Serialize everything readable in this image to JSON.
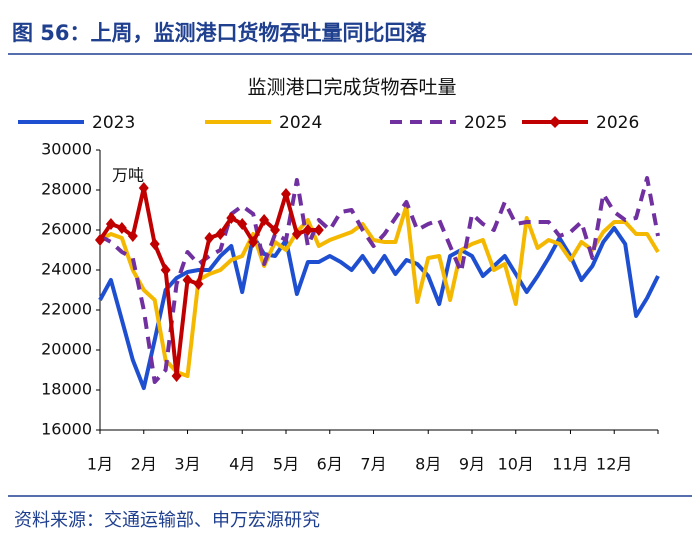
{
  "header": {
    "title": "图 56：上周，监测港口货物吞吐量同比回落"
  },
  "chart_data": {
    "type": "line",
    "title": "监测港口完成货物吞吐量",
    "unit_label": "万吨",
    "categories": [
      "1月",
      null,
      null,
      null,
      "2月",
      null,
      null,
      null,
      "3月",
      null,
      null,
      null,
      null,
      "4月",
      null,
      null,
      null,
      "5月",
      null,
      null,
      null,
      "6月",
      null,
      null,
      null,
      "7月",
      null,
      null,
      null,
      null,
      "8月",
      null,
      null,
      null,
      "9月",
      null,
      null,
      null,
      "10月",
      null,
      null,
      null,
      null,
      "11月",
      null,
      null,
      null,
      "12月",
      null,
      null,
      null,
      null
    ],
    "series": [
      {
        "name": "2023",
        "color": "#1f4fd1",
        "style": "solid",
        "values": [
          22500,
          23500,
          21500,
          19500,
          18100,
          20500,
          23000,
          23600,
          23900,
          24000,
          24000,
          24700,
          25200,
          22900,
          25700,
          24800,
          24700,
          25500,
          22800,
          24400,
          24400,
          24700,
          24400,
          24000,
          24700,
          23900,
          24700,
          23800,
          24500,
          24300,
          23700,
          22300,
          24700,
          25000,
          24700,
          23700,
          24200,
          24700,
          23800,
          22900,
          23700,
          24600,
          25600,
          24700,
          23500,
          24200,
          25400,
          26100,
          25300,
          21700,
          22600,
          23700
        ]
      },
      {
        "name": "2024",
        "color": "#f5b800",
        "style": "solid",
        "values": [
          25500,
          25800,
          25600,
          24000,
          23000,
          22500,
          19500,
          18900,
          18700,
          23500,
          23800,
          24000,
          24500,
          24700,
          25800,
          24200,
          25400,
          25000,
          25900,
          26500,
          25200,
          25500,
          25700,
          25900,
          26300,
          25500,
          25400,
          25400,
          27200,
          22400,
          24600,
          24700,
          22500,
          25000,
          25300,
          25500,
          24000,
          24300,
          22300,
          26600,
          25100,
          25500,
          25300,
          24500,
          25400,
          25000,
          25900,
          26400,
          26400,
          25800,
          25800,
          24900
        ]
      },
      {
        "name": "2025",
        "color": "#7030a0",
        "style": "dashed",
        "values": [
          25700,
          25400,
          24900,
          24600,
          22000,
          18400,
          19000,
          23300,
          24900,
          24300,
          24700,
          25000,
          26800,
          27200,
          26800,
          24300,
          25800,
          25500,
          28500,
          25200,
          26500,
          26000,
          26900,
          27000,
          26000,
          25200,
          25800,
          26600,
          27400,
          26000,
          26300,
          26500,
          25200,
          23900,
          26800,
          26300,
          26000,
          27400,
          26300,
          26400,
          26400,
          26400,
          25700,
          25900,
          26400,
          24600,
          27800,
          26900,
          26500,
          26600,
          28600,
          25700
        ]
      },
      {
        "name": "2026",
        "color": "#c00000",
        "style": "solid",
        "marker": "diamond",
        "values": [
          25500,
          26300,
          26100,
          25700,
          28100,
          25300,
          24000,
          18700,
          23500,
          23300,
          25600,
          25800,
          26600,
          26300,
          25400,
          26500,
          26000,
          27800,
          25800,
          26000,
          26000,
          null,
          null,
          null,
          null,
          null,
          null,
          null,
          null,
          null,
          null,
          null,
          null,
          null,
          null,
          null,
          null,
          null,
          null,
          null,
          null,
          null,
          null,
          null,
          null,
          null,
          null,
          null,
          null,
          null,
          null,
          null
        ]
      }
    ],
    "ylim": [
      16000,
      30000
    ],
    "yticks": [
      16000,
      18000,
      20000,
      22000,
      24000,
      26000,
      28000,
      30000
    ],
    "legend": "top"
  },
  "footer": {
    "source": "资料来源：交通运输部、申万宏源研究"
  }
}
